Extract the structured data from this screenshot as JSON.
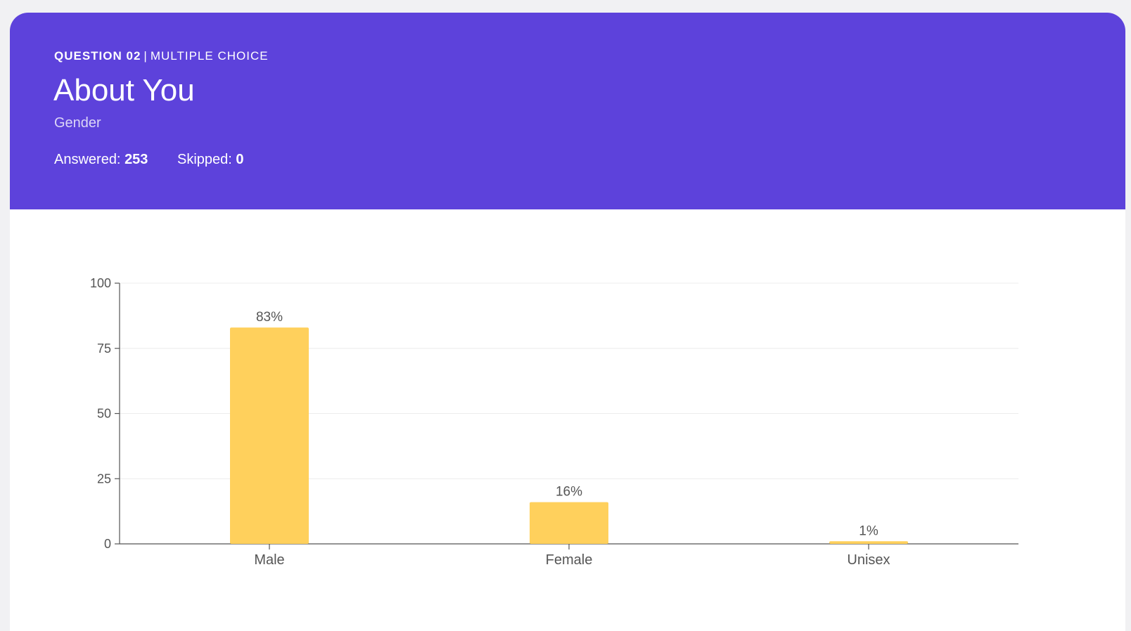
{
  "question": {
    "number_label": "QUESTION 02",
    "type_label": "MULTIPLE CHOICE",
    "title": "About You",
    "subtitle": "Gender",
    "answered_label": "Answered:",
    "answered_value": "253",
    "skipped_label": "Skipped:",
    "skipped_value": "0"
  },
  "colors": {
    "header_bg": "#5d42db",
    "bar": "#ffd05c"
  },
  "chart_data": {
    "type": "bar",
    "categories": [
      "Male",
      "Female",
      "Unisex"
    ],
    "values": [
      83,
      16,
      1
    ],
    "data_labels": [
      "83%",
      "16%",
      "1%"
    ],
    "ylim": [
      0,
      100
    ],
    "yticks": [
      0,
      25,
      50,
      75,
      100
    ],
    "grid": true,
    "title": "",
    "xlabel": "",
    "ylabel": ""
  }
}
